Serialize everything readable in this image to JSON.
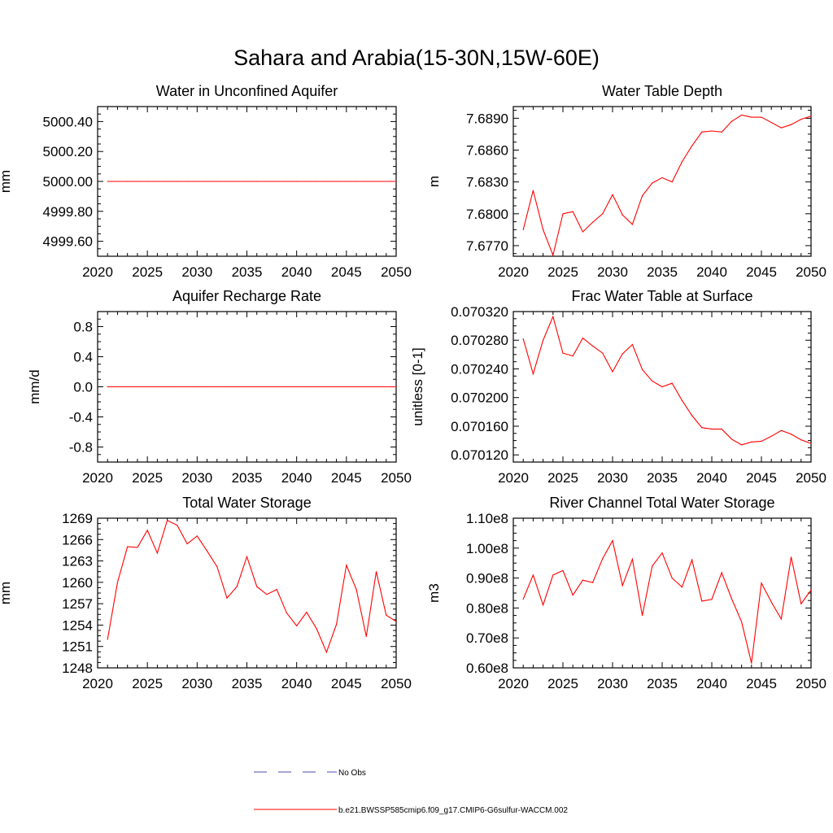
{
  "figure": {
    "title": "Sahara and Arabia(15-30N,15W-60E)"
  },
  "legend": {
    "items": [
      {
        "label": "No Obs",
        "color": "#4a4aa8",
        "style": "dashed"
      },
      {
        "label": "b.e21.BWSSP585cmip6.f09_g17.CMIP6-G6sulfur-WACCM.002",
        "color": "#ff0000",
        "style": "solid"
      }
    ]
  },
  "colors": {
    "series": "#ff0000",
    "axes": "#000000"
  },
  "chart_data": [
    {
      "type": "line",
      "title": "Water in Unconfined Aquifer",
      "ylabel": "mm",
      "xlim": [
        2020,
        2050
      ],
      "ylim": [
        4999.5,
        5000.5
      ],
      "xticks": [
        2020,
        2025,
        2030,
        2035,
        2040,
        2045,
        2050
      ],
      "yticks": [
        4999.6,
        4999.8,
        5000.0,
        5000.2,
        5000.4
      ],
      "ytick_labels": [
        "4999.60",
        "4999.80",
        "5000.00",
        "5000.20",
        "5000.40"
      ],
      "x": [
        2021,
        2022,
        2023,
        2024,
        2025,
        2026,
        2027,
        2028,
        2029,
        2030,
        2031,
        2032,
        2033,
        2034,
        2035,
        2036,
        2037,
        2038,
        2039,
        2040,
        2041,
        2042,
        2043,
        2044,
        2045,
        2046,
        2047,
        2048,
        2049,
        2050
      ],
      "values": [
        5000,
        5000,
        5000,
        5000,
        5000,
        5000,
        5000,
        5000,
        5000,
        5000,
        5000,
        5000,
        5000,
        5000,
        5000,
        5000,
        5000,
        5000,
        5000,
        5000,
        5000,
        5000,
        5000,
        5000,
        5000,
        5000,
        5000,
        5000,
        5000,
        5000
      ]
    },
    {
      "type": "line",
      "title": "Water Table Depth",
      "ylabel": "m",
      "xlim": [
        2020,
        2050
      ],
      "ylim": [
        7.676,
        7.6901
      ],
      "xticks": [
        2020,
        2025,
        2030,
        2035,
        2040,
        2045,
        2050
      ],
      "yticks": [
        7.677,
        7.68,
        7.683,
        7.686,
        7.689
      ],
      "ytick_labels": [
        "7.6770",
        "7.6800",
        "7.6830",
        "7.6860",
        "7.6890"
      ],
      "x": [
        2021,
        2022,
        2023,
        2024,
        2025,
        2026,
        2027,
        2028,
        2029,
        2030,
        2031,
        2032,
        2033,
        2034,
        2035,
        2036,
        2037,
        2038,
        2039,
        2040,
        2041,
        2042,
        2043,
        2044,
        2045,
        2046,
        2047,
        2048,
        2049,
        2050
      ],
      "values": [
        7.6785,
        7.6822,
        7.6785,
        7.6761,
        7.68,
        7.6802,
        7.6783,
        7.6792,
        7.68,
        7.6818,
        7.6799,
        7.679,
        7.6817,
        7.6829,
        7.6834,
        7.683,
        7.6849,
        7.6864,
        7.6877,
        7.6878,
        7.6877,
        7.6887,
        7.6893,
        7.6891,
        7.6891,
        7.6886,
        7.6881,
        7.6884,
        7.6889,
        7.6892
      ]
    },
    {
      "type": "line",
      "title": "Aquifer Recharge Rate",
      "ylabel": "mm/d",
      "xlim": [
        2020,
        2050
      ],
      "ylim": [
        -1.0,
        1.0
      ],
      "xticks": [
        2020,
        2025,
        2030,
        2035,
        2040,
        2045,
        2050
      ],
      "yticks": [
        -0.8,
        -0.4,
        0.0,
        0.4,
        0.8
      ],
      "ytick_labels": [
        "-0.8",
        "-0.4",
        "0.0",
        "0.4",
        "0.8"
      ],
      "x": [
        2021,
        2022,
        2023,
        2024,
        2025,
        2026,
        2027,
        2028,
        2029,
        2030,
        2031,
        2032,
        2033,
        2034,
        2035,
        2036,
        2037,
        2038,
        2039,
        2040,
        2041,
        2042,
        2043,
        2044,
        2045,
        2046,
        2047,
        2048,
        2049,
        2050
      ],
      "values": [
        0,
        0,
        0,
        0,
        0,
        0,
        0,
        0,
        0,
        0,
        0,
        0,
        0,
        0,
        0,
        0,
        0,
        0,
        0,
        0,
        0,
        0,
        0,
        0,
        0,
        0,
        0,
        0,
        0,
        0
      ]
    },
    {
      "type": "line",
      "title": "Frac Water Table at Surface",
      "ylabel": "unitless [0-1]",
      "xlim": [
        2020,
        2050
      ],
      "ylim": [
        0.07011,
        0.07032
      ],
      "xticks": [
        2020,
        2025,
        2030,
        2035,
        2040,
        2045,
        2050
      ],
      "yticks": [
        0.07012,
        0.07016,
        0.0702,
        0.07024,
        0.07028,
        0.07032
      ],
      "ytick_labels": [
        "0.070120",
        "0.070160",
        "0.070200",
        "0.070240",
        "0.070280",
        "0.070320"
      ],
      "x": [
        2021,
        2022,
        2023,
        2024,
        2025,
        2026,
        2027,
        2028,
        2029,
        2030,
        2031,
        2032,
        2033,
        2034,
        2035,
        2036,
        2037,
        2038,
        2039,
        2040,
        2041,
        2042,
        2043,
        2044,
        2045,
        2046,
        2047,
        2048,
        2049,
        2050
      ],
      "values": [
        0.070282,
        0.070233,
        0.07028,
        0.070313,
        0.070262,
        0.070258,
        0.070283,
        0.070272,
        0.070262,
        0.070236,
        0.070261,
        0.070274,
        0.070239,
        0.070223,
        0.070215,
        0.07022,
        0.070196,
        0.070175,
        0.070158,
        0.070156,
        0.070156,
        0.070142,
        0.070134,
        0.070138,
        0.070139,
        0.070146,
        0.070154,
        0.070149,
        0.070141,
        0.070136
      ]
    },
    {
      "type": "line",
      "title": "Total Water Storage",
      "ylabel": "mm",
      "xlim": [
        2020,
        2050
      ],
      "ylim": [
        1248,
        1269
      ],
      "xticks": [
        2020,
        2025,
        2030,
        2035,
        2040,
        2045,
        2050
      ],
      "yticks": [
        1248,
        1251,
        1254,
        1257,
        1260,
        1263,
        1266,
        1269
      ],
      "ytick_labels": [
        "1248",
        "1251",
        "1254",
        "1257",
        "1260",
        "1263",
        "1266",
        "1269"
      ],
      "x": [
        2021,
        2022,
        2023,
        2024,
        2025,
        2026,
        2027,
        2028,
        2029,
        2030,
        2031,
        2032,
        2033,
        2034,
        2035,
        2036,
        2037,
        2038,
        2039,
        2040,
        2041,
        2042,
        2043,
        2044,
        2045,
        2046,
        2047,
        2048,
        2049,
        2050
      ],
      "values": [
        1252.0,
        1260.0,
        1265.0,
        1264.9,
        1267.3,
        1264.1,
        1268.7,
        1268.0,
        1265.4,
        1266.5,
        1264.4,
        1262.2,
        1257.8,
        1259.4,
        1263.6,
        1259.4,
        1258.3,
        1259.0,
        1255.7,
        1253.9,
        1255.8,
        1253.5,
        1250.2,
        1254.1,
        1262.4,
        1259.0,
        1252.4,
        1261.5,
        1255.4,
        1254.5
      ]
    },
    {
      "type": "line",
      "title": "River Channel Total Water Storage",
      "ylabel": "m3",
      "xlim": [
        2020,
        2050
      ],
      "ylim": [
        60000000.0,
        110000000.0
      ],
      "xticks": [
        2020,
        2025,
        2030,
        2035,
        2040,
        2045,
        2050
      ],
      "yticks": [
        60000000.0,
        70000000.0,
        80000000.0,
        90000000.0,
        100000000.0,
        110000000.0
      ],
      "ytick_labels": [
        "0.60e8",
        "0.70e8",
        "0.80e8",
        "0.90e8",
        "1.00e8",
        "1.10e8"
      ],
      "x": [
        2021,
        2022,
        2023,
        2024,
        2025,
        2026,
        2027,
        2028,
        2029,
        2030,
        2031,
        2032,
        2033,
        2034,
        2035,
        2036,
        2037,
        2038,
        2039,
        2040,
        2041,
        2042,
        2043,
        2044,
        2045,
        2046,
        2047,
        2048,
        2049,
        2050
      ],
      "values": [
        83000000,
        91000000,
        81000000,
        91000000,
        92500000,
        84300000,
        89300000,
        88500000,
        96500000,
        102500000,
        87500000,
        96300000,
        77500000,
        94000000,
        98400000,
        90000000,
        87000000,
        96100000,
        82300000,
        82900000,
        91800000,
        83100000,
        75400000,
        61600000,
        88300000,
        82000000,
        76300000,
        97000000,
        81400000,
        86000000
      ]
    }
  ]
}
